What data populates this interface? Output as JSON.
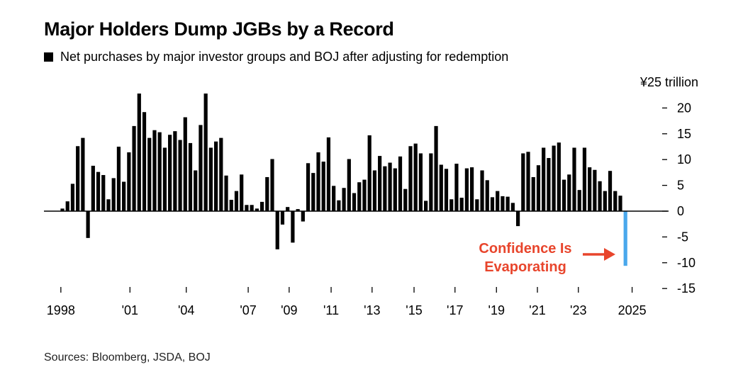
{
  "title": "Major Holders Dump JGBs by a Record",
  "legend_label": "Net purchases by major investor groups and BOJ after adjusting for redemption",
  "source": "Sources: Bloomberg, JSDA, BOJ",
  "colors": {
    "bars": "#000000",
    "highlight": "#4aa8ec",
    "annotation": "#e8452c"
  },
  "chart_data": {
    "type": "bar",
    "title": "Major Holders Dump JGBs by a Record",
    "ylabel": "¥25 trillion",
    "ylim": [
      -15,
      25
    ],
    "yticks": [
      "20",
      "15",
      "10",
      "5",
      "0",
      "-5",
      "-10",
      "-15"
    ],
    "ytick_values": [
      20,
      15,
      10,
      5,
      0,
      -5,
      -10,
      -15
    ],
    "xticks": [
      {
        "label": "1998",
        "at": -0.3
      },
      {
        "label": "'01",
        "at": 13.2
      },
      {
        "label": "'04",
        "at": 24.2
      },
      {
        "label": "'07",
        "at": 36.3
      },
      {
        "label": "'09",
        "at": 44.3
      },
      {
        "label": "'11",
        "at": 52.5
      },
      {
        "label": "'13",
        "at": 60.5
      },
      {
        "label": "'15",
        "at": 68.7
      },
      {
        "label": "'17",
        "at": 76.7
      },
      {
        "label": "'19",
        "at": 84.8
      },
      {
        "label": "'21",
        "at": 92.8
      },
      {
        "label": "'23",
        "at": 100.8
      },
      {
        "label": "2025",
        "at": 111.3
      }
    ],
    "values": [
      0.5,
      1.9,
      5.3,
      12.6,
      14.2,
      -5.2,
      8.8,
      7.6,
      7.0,
      2.3,
      6.4,
      12.5,
      5.7,
      11.4,
      16.5,
      22.8,
      19.2,
      14.2,
      15.7,
      15.3,
      12.3,
      14.8,
      15.5,
      13.8,
      18.2,
      13.2,
      7.9,
      16.7,
      22.8,
      12.3,
      13.5,
      14.2,
      6.9,
      2.2,
      3.9,
      7.1,
      1.2,
      1.2,
      0.5,
      1.8,
      6.6,
      10.1,
      -7.4,
      -2.6,
      0.8,
      -6.1,
      0.4,
      -2.0,
      9.3,
      7.4,
      11.4,
      9.6,
      14.3,
      4.9,
      2.1,
      4.5,
      10.1,
      3.5,
      5.6,
      6.1,
      14.7,
      7.9,
      10.7,
      8.7,
      9.4,
      8.3,
      10.6,
      4.3,
      12.6,
      13.1,
      11.2,
      2.0,
      11.2,
      16.5,
      9.0,
      8.2,
      2.3,
      9.2,
      2.6,
      8.3,
      8.5,
      2.3,
      7.9,
      6.0,
      2.7,
      3.9,
      2.9,
      2.8,
      1.6,
      -2.9,
      11.2,
      11.5,
      6.6,
      8.9,
      12.3,
      10.3,
      12.7,
      13.3,
      6.1,
      7.1,
      12.3,
      4.1,
      12.3,
      8.5,
      8.0,
      5.8,
      3.9,
      7.8,
      3.9,
      3.0,
      -10.6
    ],
    "highlight_index": 110,
    "annotation": {
      "line1": "Confidence Is",
      "line2": "Evaporating"
    }
  }
}
